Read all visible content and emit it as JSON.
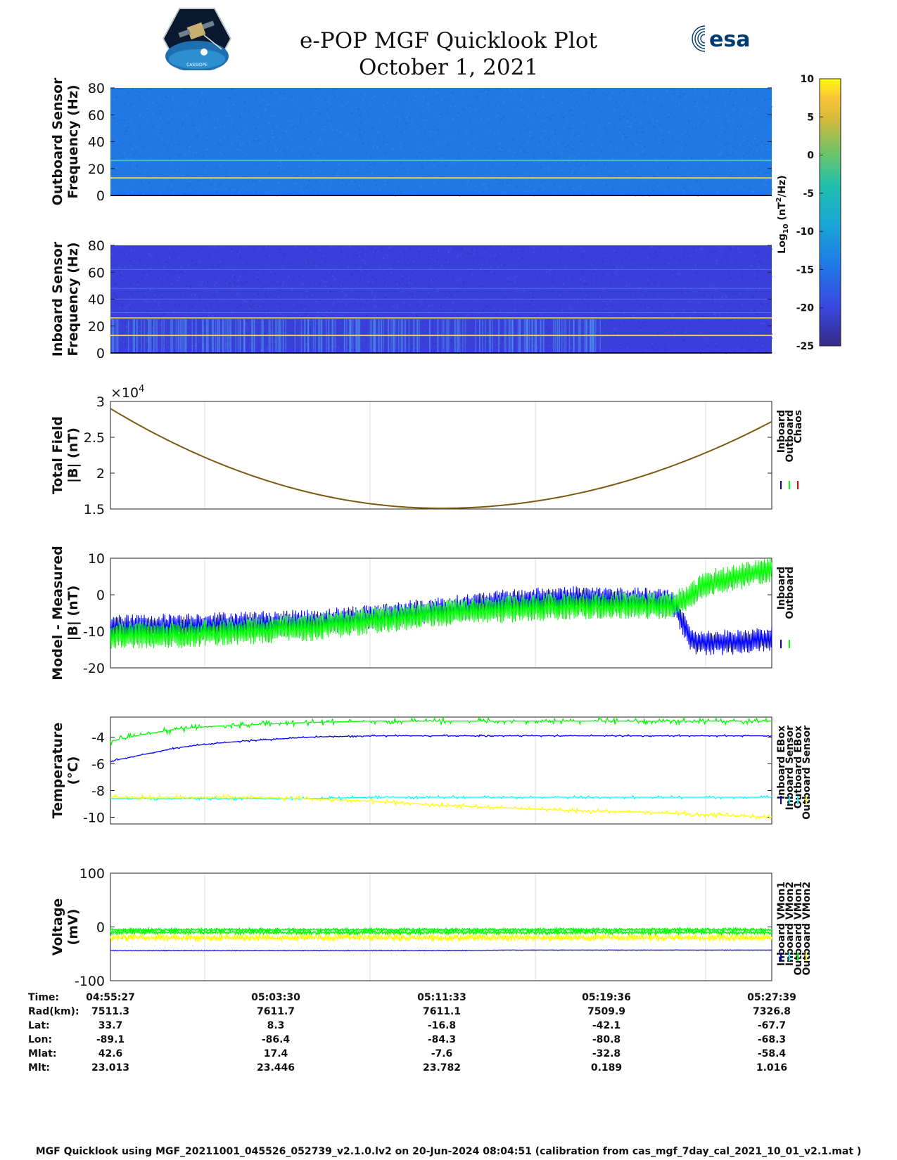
{
  "header": {
    "title_line1": "e-POP MGF Quicklook Plot",
    "title_line2": "October 1, 2021",
    "logo_left_text": "CASSIOPE",
    "logo_right_text": "esa"
  },
  "colorbar": {
    "label_prefix": "Log",
    "label_sub": "10",
    "label_units": " (nT",
    "label_sup": "2",
    "label_end": "/Hz)",
    "ticks": [
      "10",
      "5",
      "0",
      "-5",
      "-10",
      "-15",
      "-20",
      "-25"
    ],
    "range": [
      -25,
      10
    ]
  },
  "footer": {
    "text": "MGF Quicklook using MGF_20211001_045526_052739_v2.1.0.lv2 on 20-Jun-2024 08:04:51 (calibration from cas_mgf_7day_cal_2021_10_01_v2.1.mat )"
  },
  "info_table": {
    "labels": [
      "Time:",
      "Rad(km):",
      "Lat:",
      "Lon:",
      "Mlat:",
      "Mlt:"
    ],
    "columns": [
      [
        "04:55:27",
        "7511.3",
        "33.7",
        "-89.1",
        "42.6",
        "23.013"
      ],
      [
        "05:03:30",
        "7611.7",
        "8.3",
        "-86.4",
        "17.4",
        "23.446"
      ],
      [
        "05:11:33",
        "7611.1",
        "-16.8",
        "-84.3",
        "-7.6",
        "23.782"
      ],
      [
        "05:19:36",
        "7509.9",
        "-42.1",
        "-80.8",
        "-32.8",
        "0.189"
      ],
      [
        "05:27:39",
        "7326.8",
        "-67.7",
        "-68.3",
        "-58.4",
        "1.016"
      ]
    ]
  },
  "colors": {
    "inboard": "#0000ff",
    "outboard": "#00ff00",
    "chaos": "#ff0000",
    "outboard_sensor": "#00e5ee",
    "cyan_temp": "#00ffff",
    "yellow": "#ffff00",
    "spectro_outboard_bg": "#1f78e6",
    "spectro_inboard_bg": "#3a3fd9"
  },
  "chart_data": [
    {
      "type": "heatmap",
      "name": "outboard-spectrogram",
      "ylabel_line1": "Outboard Sensor",
      "ylabel_line2": "Frequency (Hz)",
      "yticks": [
        "80",
        "60",
        "40",
        "20",
        "0"
      ],
      "ylim": [
        0,
        80
      ],
      "bands_hz": [
        13,
        26
      ],
      "band_colors": [
        "#e8d040",
        "#40c0c0"
      ]
    },
    {
      "type": "heatmap",
      "name": "inboard-spectrogram",
      "ylabel_line1": "Inboard Sensor",
      "ylabel_line2": "Frequency (Hz)",
      "yticks": [
        "80",
        "60",
        "40",
        "20",
        "0"
      ],
      "ylim": [
        0,
        80
      ],
      "bands_hz": [
        13,
        26
      ],
      "band_colors": [
        "#e8d040",
        "#d8c84a"
      ]
    },
    {
      "type": "line",
      "name": "total-field",
      "ylabel_line1": "Total Field",
      "ylabel_line2": "|B| (nT)",
      "exponent_label": "×10",
      "exponent_sup": "4",
      "yticks": [
        "3",
        "2.5",
        "2",
        "1.5"
      ],
      "ylim": [
        1.5,
        3
      ],
      "legend": [
        "Inboard",
        "Outboard",
        "Chaos"
      ],
      "x": [
        0,
        0.1,
        0.2,
        0.3,
        0.4,
        0.5,
        0.6,
        0.7,
        0.8,
        0.9,
        1.0
      ],
      "series": [
        {
          "values": [
            2.9,
            2.58,
            2.27,
            1.98,
            1.74,
            1.56,
            1.51,
            1.61,
            1.83,
            2.18,
            2.58
          ]
        }
      ]
    },
    {
      "type": "line",
      "name": "model-minus-measured",
      "ylabel_line1": "Model - Measured",
      "ylabel_line2": "|B| (nT)",
      "yticks": [
        "10",
        "0",
        "-10",
        "-20"
      ],
      "ylim": [
        -20,
        10
      ],
      "legend": [
        "Inboard",
        "Outboard"
      ],
      "x": [
        0,
        0.1,
        0.2,
        0.3,
        0.4,
        0.5,
        0.6,
        0.7,
        0.8,
        0.85,
        0.88,
        0.9,
        0.95,
        1.0
      ],
      "series": [
        {
          "name": "Inboard",
          "values": [
            -9,
            -8.5,
            -8,
            -7.5,
            -6,
            -4,
            -2,
            -1,
            -1.5,
            -2,
            -13,
            -13,
            -13,
            -12
          ]
        },
        {
          "name": "Outboard",
          "values": [
            -11,
            -11,
            -10,
            -9,
            -7,
            -5,
            -4,
            -3,
            -3,
            -3,
            0,
            3,
            5,
            7
          ]
        }
      ]
    },
    {
      "type": "line",
      "name": "temperature",
      "ylabel_line1": "Temperature",
      "ylabel_line2": "(°C)",
      "yticks": [
        "-4",
        "-6",
        "-8",
        "-10"
      ],
      "ylim": [
        -10.5,
        -2.5
      ],
      "legend": [
        "Inboard EBox",
        "Inboard Sensor",
        "Outboard EBox",
        "Outboard Sensor"
      ],
      "x": [
        0,
        0.05,
        0.1,
        0.15,
        0.2,
        0.3,
        0.4,
        0.5,
        0.6,
        0.7,
        0.8,
        0.9,
        1.0
      ],
      "series": [
        {
          "name": "Inboard EBox",
          "values": [
            -4.3,
            -3.8,
            -3.4,
            -3.2,
            -3.1,
            -2.9,
            -2.8,
            -2.8,
            -2.8,
            -2.8,
            -2.8,
            -2.8,
            -2.8
          ]
        },
        {
          "name": "Inboard Sensor",
          "values": [
            -5.8,
            -5.3,
            -4.8,
            -4.5,
            -4.3,
            -4.0,
            -3.9,
            -3.9,
            -3.9,
            -3.9,
            -3.9,
            -3.9,
            -3.9
          ]
        },
        {
          "name": "Outboard EBox",
          "values": [
            -8.6,
            -8.6,
            -8.6,
            -8.6,
            -8.6,
            -8.6,
            -8.5,
            -8.5,
            -8.5,
            -8.5,
            -8.5,
            -8.5,
            -8.5
          ]
        },
        {
          "name": "Outboard Sensor",
          "values": [
            -8.5,
            -8.5,
            -8.5,
            -8.5,
            -8.5,
            -8.6,
            -8.8,
            -9.1,
            -9.3,
            -9.5,
            -9.6,
            -9.8,
            -10.0
          ]
        }
      ]
    },
    {
      "type": "line",
      "name": "voltage",
      "ylabel_line1": "Voltage",
      "ylabel_line2": "(mV)",
      "yticks": [
        "100",
        "0",
        "-100"
      ],
      "ylim": [
        -100,
        100
      ],
      "legend": [
        "Inboard VMon1",
        "Inboard VMon2",
        "Outboard VMon1",
        "Outboard VMon2"
      ],
      "x": [
        0,
        0.1,
        0.2,
        0.3,
        0.4,
        0.5,
        0.6,
        0.7,
        0.8,
        0.9,
        1.0
      ],
      "series": [
        {
          "name": "Inboard VMon1",
          "values": [
            -44,
            -44,
            -44,
            -44,
            -44,
            -44,
            -43,
            -43,
            -43,
            -43,
            -43
          ]
        },
        {
          "name": "Inboard VMon2",
          "values": [
            -5,
            -5,
            -5,
            -5,
            -5,
            -5,
            -5,
            -5,
            -5,
            -5,
            -5
          ]
        },
        {
          "name": "Outboard VMon1",
          "values": [
            -10,
            -10,
            -10,
            -10,
            -10,
            -10,
            -10,
            -10,
            -10,
            -10,
            -10
          ]
        },
        {
          "name": "Outboard VMon2",
          "values": [
            -20,
            -20,
            -20,
            -20,
            -20,
            -20,
            -20,
            -20,
            -20,
            -20,
            -20
          ]
        }
      ]
    }
  ]
}
